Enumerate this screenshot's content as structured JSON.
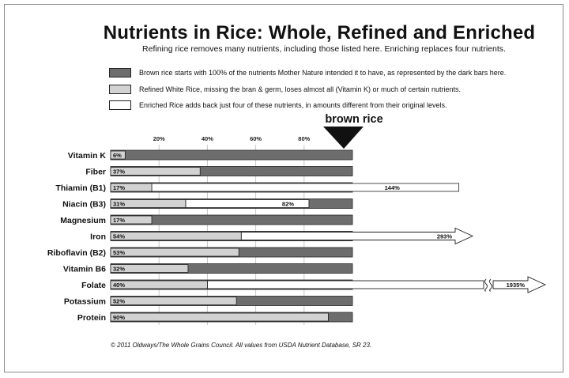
{
  "title": "Nutrients in Rice: Whole, Refined and Enriched",
  "subtitle": "Refining rice removes many nutrients, including those listed here. Enriching replaces four nutrients.",
  "legend": [
    {
      "text": "Brown rice starts with 100% of the nutrients Mother Nature intended it to have, as represented by the dark bars here.",
      "color": "#6d6d6d"
    },
    {
      "text": "Refined White Rice, missing the bran & germ, loses almost all (Vitamin K) or much of certain nutrients.",
      "color": "#d2d2d2"
    },
    {
      "text": "Enriched Rice adds back just four of these nutrients, in amounts different from their original levels.",
      "color": "#ffffff"
    }
  ],
  "brown_rice_label": "brown rice",
  "footnote": "© 2011 Oldways/The Whole Grains Council.  All values from USDA Nutrient Database, SR 23.",
  "colors": {
    "brown": "#6d6d6d",
    "refined": "#d2d2d2",
    "enriched": "#ffffff",
    "outline": "#222222"
  },
  "chart_data": {
    "type": "bar",
    "orientation": "horizontal",
    "x_ticks": [
      "20%",
      "40%",
      "60%",
      "80%"
    ],
    "x_tick_values": [
      20,
      40,
      60,
      80
    ],
    "categories": [
      "Vitamin K",
      "Fiber",
      "Thiamin (B1)",
      "Niacin (B3)",
      "Magnesium",
      "Iron",
      "Riboflavin (B2)",
      "Vitamin B6",
      "Folate",
      "Potassium",
      "Protein"
    ],
    "series": [
      {
        "name": "Brown rice",
        "values": [
          100,
          100,
          100,
          100,
          100,
          100,
          100,
          100,
          100,
          100,
          100
        ]
      },
      {
        "name": "Refined White Rice",
        "values": [
          6,
          37,
          17,
          31,
          17,
          54,
          53,
          32,
          40,
          52,
          90
        ]
      },
      {
        "name": "Enriched Rice",
        "values": [
          null,
          null,
          144,
          82,
          null,
          293,
          null,
          null,
          1935,
          null,
          null
        ]
      }
    ],
    "refined_labels": [
      "6%",
      "37%",
      "17%",
      "31%",
      "17%",
      "54%",
      "53%",
      "32%",
      "40%",
      "52%",
      "90%"
    ],
    "enriched_labels": [
      null,
      null,
      "144%",
      "82%",
      null,
      "293%",
      null,
      null,
      "1935%",
      null,
      null
    ],
    "broken_axis_categories": [
      "Folate"
    ],
    "arrow_categories": [
      "Iron",
      "Folate"
    ],
    "grid": true
  }
}
